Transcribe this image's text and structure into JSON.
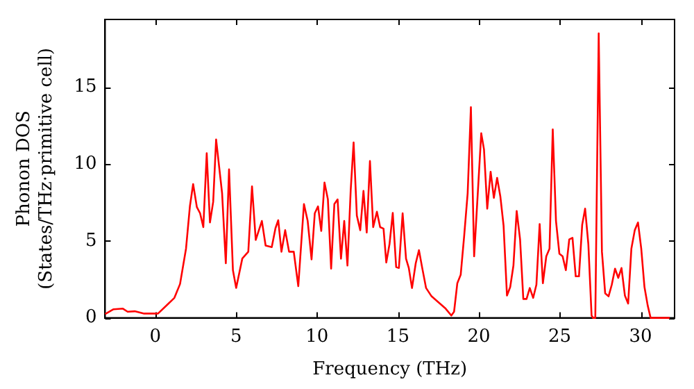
{
  "chart_data": {
    "type": "line",
    "xlabel": "Frequency (THz)",
    "ylabel": "Phonon DOS\n(States/THz·primitive cell)",
    "xlim": [
      -3.1,
      32.1
    ],
    "ylim": [
      0,
      19.4
    ],
    "xticks": [
      0,
      5,
      10,
      15,
      20,
      25,
      30
    ],
    "yticks": [
      0,
      5,
      10,
      15
    ],
    "grid": false,
    "legend": false,
    "marker": "none",
    "line_style": "solid",
    "series": [
      {
        "color": "#ff0000",
        "x": [
          -3.1,
          -2.58,
          -2.0,
          -1.71,
          -1.27,
          -0.69,
          0.17,
          0.75,
          1.18,
          1.53,
          1.9,
          2.14,
          2.34,
          2.57,
          2.77,
          2.97,
          3.18,
          3.38,
          3.58,
          3.76,
          4.13,
          4.36,
          4.56,
          4.8,
          5.0,
          5.38,
          5.75,
          5.98,
          6.21,
          6.59,
          6.82,
          7.2,
          7.43,
          7.6,
          7.8,
          8.03,
          8.27,
          8.56,
          8.84,
          9.19,
          9.42,
          9.66,
          9.86,
          10.06,
          10.26,
          10.46,
          10.67,
          10.87,
          11.07,
          11.27,
          11.48,
          11.68,
          11.88,
          12.08,
          12.26,
          12.46,
          12.67,
          12.87,
          13.07,
          13.27,
          13.47,
          13.7,
          13.9,
          14.11,
          14.28,
          14.48,
          14.68,
          14.89,
          15.06,
          15.29,
          15.5,
          15.67,
          15.87,
          16.1,
          16.3,
          16.5,
          16.74,
          17.08,
          17.52,
          17.95,
          18.3,
          18.47,
          18.67,
          18.88,
          19.1,
          19.31,
          19.51,
          19.71,
          20.15,
          20.32,
          20.52,
          20.73,
          20.93,
          21.13,
          21.33,
          21.53,
          21.74,
          21.94,
          22.14,
          22.34,
          22.55,
          22.75,
          22.95,
          23.15,
          23.36,
          23.56,
          23.76,
          23.96,
          24.17,
          24.37,
          24.57,
          24.77,
          24.98,
          25.18,
          25.38,
          25.59,
          25.79,
          25.99,
          26.19,
          26.39,
          26.57,
          26.77,
          26.97,
          27.06,
          27.2,
          27.41,
          27.61,
          27.81,
          28.02,
          28.22,
          28.42,
          28.62,
          28.82,
          29.03,
          29.23,
          29.43,
          29.64,
          29.84,
          30.04,
          30.24,
          30.44,
          30.62,
          31.8
        ],
        "values": [
          0.25,
          0.56,
          0.6,
          0.4,
          0.43,
          0.28,
          0.28,
          0.86,
          1.3,
          2.2,
          4.5,
          7.25,
          8.7,
          7.2,
          6.8,
          5.9,
          10.7,
          6.2,
          7.55,
          11.6,
          8.1,
          3.55,
          9.66,
          3.1,
          1.95,
          3.86,
          4.3,
          8.55,
          5.07,
          6.3,
          4.7,
          4.6,
          5.83,
          6.35,
          4.3,
          5.7,
          4.3,
          4.3,
          2.06,
          7.4,
          6.3,
          3.8,
          6.8,
          7.25,
          5.65,
          8.8,
          7.7,
          3.2,
          7.4,
          7.7,
          3.85,
          6.3,
          3.4,
          8.3,
          11.4,
          6.65,
          5.7,
          8.25,
          5.55,
          10.2,
          5.9,
          6.9,
          5.9,
          5.8,
          3.6,
          4.8,
          6.82,
          3.3,
          3.25,
          6.8,
          3.85,
          3.25,
          1.94,
          3.55,
          4.4,
          3.25,
          1.94,
          1.4,
          1.0,
          0.6,
          0.15,
          0.4,
          2.25,
          2.8,
          5.4,
          8.1,
          13.7,
          4.0,
          12.0,
          10.95,
          7.1,
          9.5,
          7.8,
          9.1,
          7.9,
          6.0,
          1.45,
          2.0,
          3.4,
          6.95,
          5.1,
          1.23,
          1.23,
          1.94,
          1.3,
          2.16,
          6.1,
          2.25,
          4.0,
          4.5,
          12.25,
          6.3,
          4.17,
          4.0,
          3.1,
          5.1,
          5.2,
          2.7,
          2.7,
          6.05,
          7.1,
          4.8,
          0.15,
          0,
          0,
          18.5,
          4.3,
          1.6,
          1.4,
          2.16,
          3.2,
          2.6,
          3.24,
          1.45,
          0.93,
          4.5,
          5.7,
          6.2,
          4.5,
          2.0,
          0.8,
          0,
          0
        ]
      }
    ]
  }
}
